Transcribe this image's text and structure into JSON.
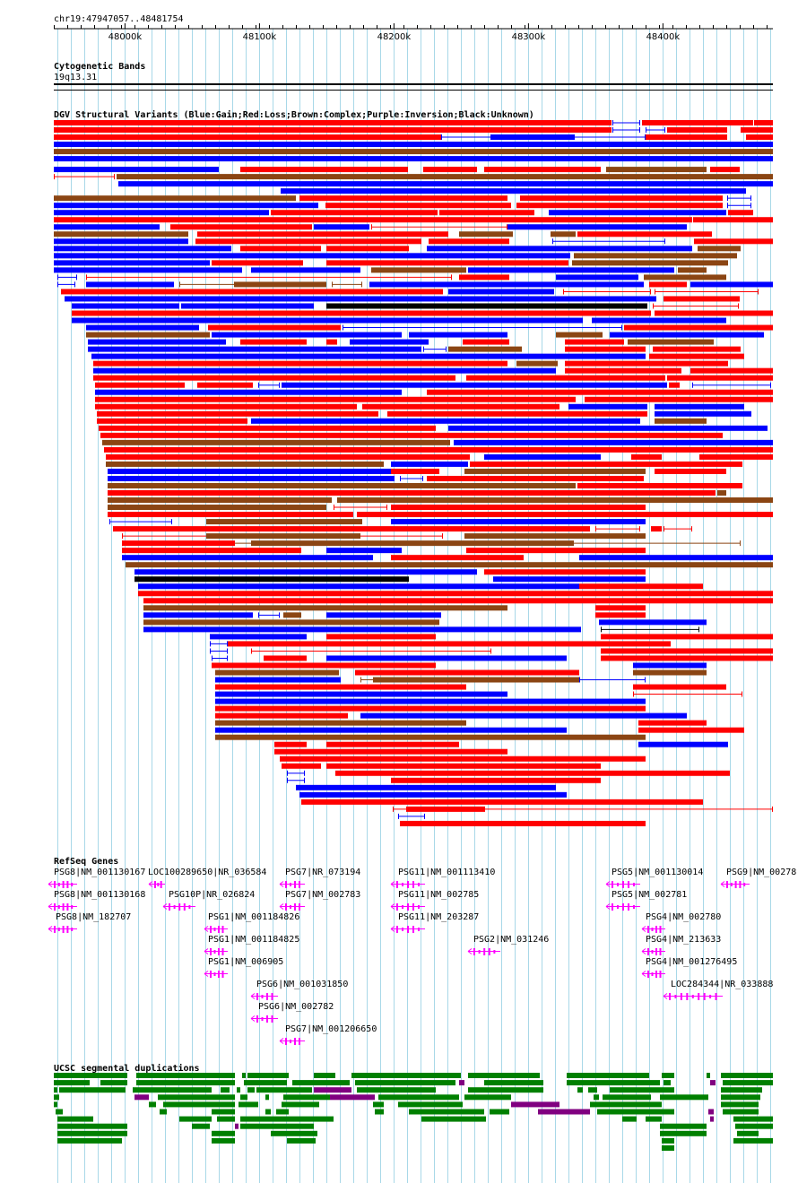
{
  "region": {
    "label": "chr19:47947057..48481754"
  },
  "ruler": {
    "ticks": [
      {
        "label": "48000k",
        "pos": 48000000
      },
      {
        "label": "48100k",
        "pos": 48100000
      },
      {
        "label": "48200k",
        "pos": 48200000
      },
      {
        "label": "48300k",
        "pos": 48300000
      },
      {
        "label": "48400k",
        "pos": 48400000
      }
    ]
  },
  "tracks": {
    "cytoband": {
      "title": "Cytogenetic Bands",
      "band": "19q13.31"
    },
    "dgv": {
      "title": "DGV Structural Variants (Blue:Gain;Red:Loss;Brown:Complex;Purple:Inversion;Black:Unknown)"
    },
    "refseq": {
      "title": "RefSeq Genes",
      "genes": [
        {
          "label": "PSG8|NM_001130167"
        },
        {
          "label": "LOC100289650|NR_036584"
        },
        {
          "label": "PSG7|NR_073194"
        },
        {
          "label": "PSG11|NM_001113410"
        },
        {
          "label": "PSG5|NM_001130014"
        },
        {
          "label": "PSG9|NM_00278"
        },
        {
          "label": "PSG8|NM_001130168"
        },
        {
          "label": "PSG10P|NR_026824"
        },
        {
          "label": "PSG7|NM_002783"
        },
        {
          "label": "PSG11|NM_002785"
        },
        {
          "label": "PSG5|NM_002781"
        },
        {
          "label": "PSG8|NM_182707"
        },
        {
          "label": "PSG1|NM_001184826"
        },
        {
          "label": "PSG11|NM_203287"
        },
        {
          "label": "PSG4|NM_002780"
        },
        {
          "label": "PSG1|NM_001184825"
        },
        {
          "label": "PSG2|NM_031246"
        },
        {
          "label": "PSG4|NM_213633"
        },
        {
          "label": "PSG1|NM_006905"
        },
        {
          "label": "PSG4|NM_001276495"
        },
        {
          "label": "PSG6|NM_001031850"
        },
        {
          "label": "LOC284344|NR_033888"
        },
        {
          "label": "PSG6|NM_002782"
        },
        {
          "label": "PSG7|NM_001206650"
        }
      ]
    },
    "segdups": {
      "title": "UCSC segmental duplications"
    }
  },
  "colors": {
    "gain": "#0000ff",
    "loss": "#ff0000",
    "complex": "#8b4513",
    "unknown": "#000000",
    "inversion": "#800080",
    "gene": "#ff00ff",
    "segdup_green": "#008000",
    "segdup_purple": "#800080",
    "grid": "#a8d8e8"
  }
}
